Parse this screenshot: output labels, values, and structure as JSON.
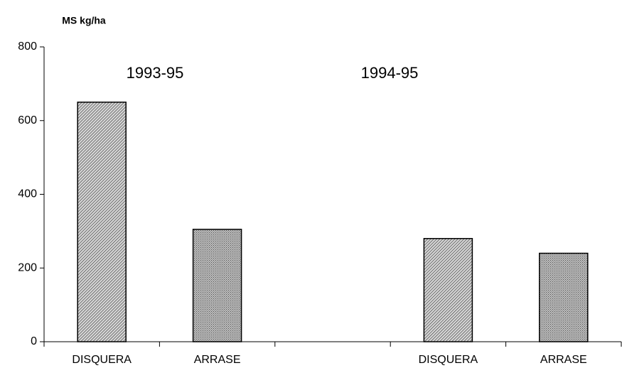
{
  "chart_data": {
    "type": "bar",
    "y_label": "MS kg/ha",
    "categories": [
      "DISQUERA",
      "ARRASE",
      null,
      "DISQUERA",
      "ARRASE"
    ],
    "values": [
      650,
      305,
      null,
      280,
      240
    ],
    "patterns": [
      "diagonal",
      "cross",
      null,
      "diagonal",
      "cross"
    ],
    "annotations": [
      "1993-95",
      "1994-95"
    ],
    "ylim": [
      0,
      800
    ],
    "yticks": [
      0,
      200,
      400,
      600,
      800
    ],
    "grid": false
  }
}
